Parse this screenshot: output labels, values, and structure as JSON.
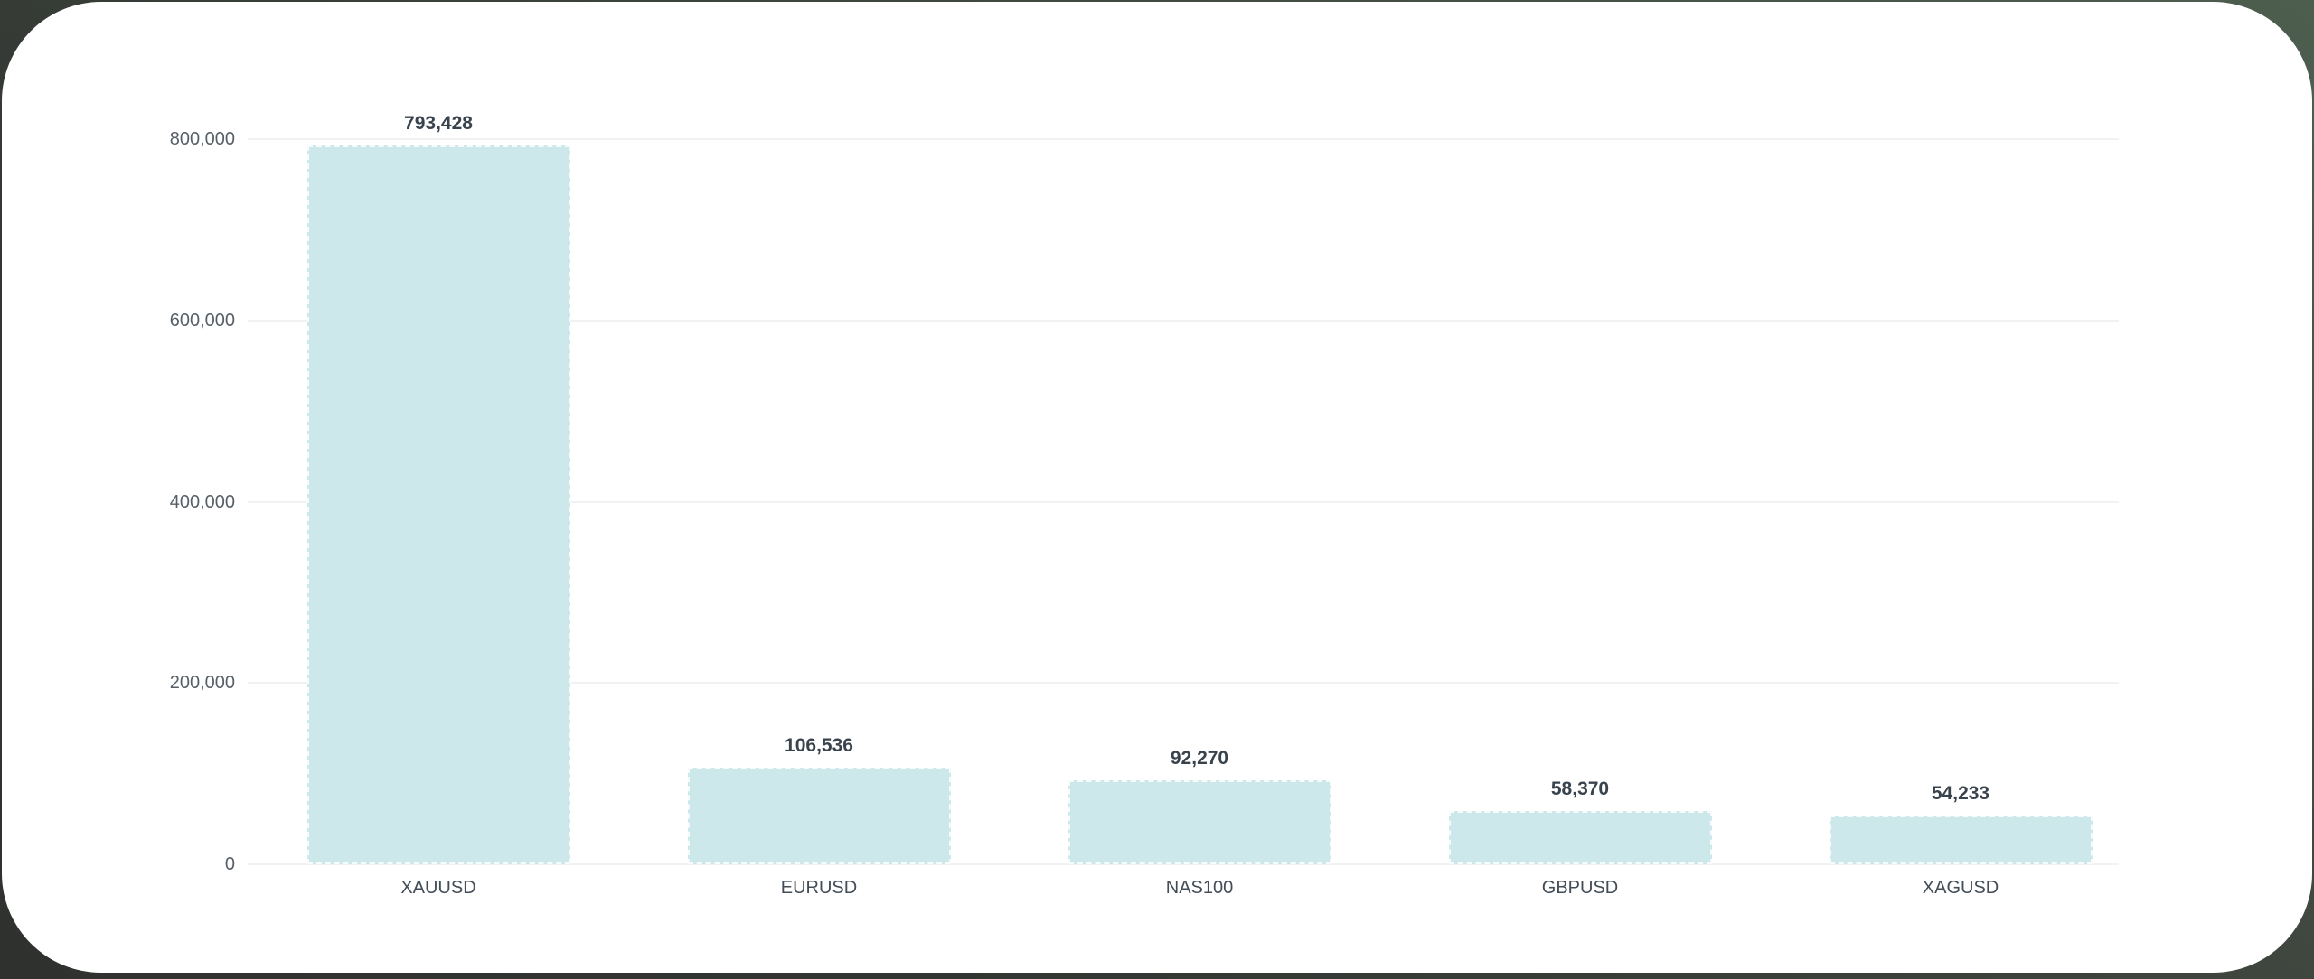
{
  "desktop": {
    "background_top_right": "#4d5e4f",
    "background_bottom_left": "#2f312f",
    "card_background": "#ffffff"
  },
  "chart_data": {
    "type": "bar",
    "title": "",
    "xlabel": "",
    "ylabel": "",
    "categories": [
      "XAUUSD",
      "EURUSD",
      "NAS100",
      "GBPUSD",
      "XAGUSD"
    ],
    "values": [
      793428,
      106536,
      92270,
      58370,
      54233
    ],
    "value_labels": [
      "793,428",
      "106,536",
      "92,270",
      "58,370",
      "54,233"
    ],
    "ylim": [
      0,
      800000
    ],
    "yticks": [
      0,
      200000,
      400000,
      600000,
      800000
    ],
    "ytick_labels": [
      "0",
      "200,000",
      "400,000",
      "600,000",
      "800,000"
    ],
    "grid": true,
    "legend": "none",
    "bar_color": "#cce8eb",
    "bar_border_color": "rgba(255,255,255,0.85)",
    "gridline_color": "#f1f2f3",
    "value_label_color": "#39434d",
    "x_label_color": "#434d57",
    "y_label_color": "#565f68"
  }
}
